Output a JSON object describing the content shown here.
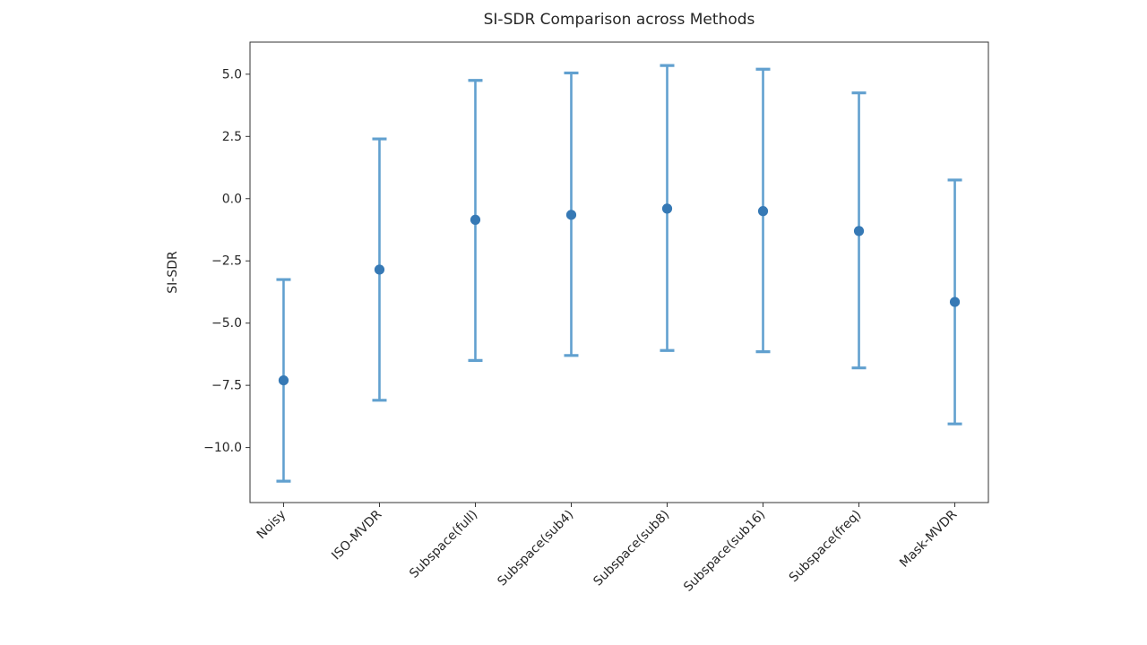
{
  "figure": {
    "title": "SI-SDR Comparison across Methods",
    "ylabel": "SI-SDR"
  },
  "chart_data": {
    "type": "scatter",
    "subtype": "errorbar-points",
    "title": "SI-SDR Comparison across Methods",
    "xlabel": "",
    "ylabel": "SI-SDR",
    "categories": [
      "Noisy",
      "ISO-MVDR",
      "Subspace(full)",
      "Subspace(sub4)",
      "Subspace(sub8)",
      "Subspace(sub16)",
      "Subspace(freq)",
      "Mask-MVDR"
    ],
    "series": [
      {
        "name": "SI-SDR",
        "means": [
          -7.3,
          -2.85,
          -0.85,
          -0.65,
          -0.4,
          -0.5,
          -1.3,
          -4.15
        ],
        "upper": [
          -3.25,
          2.4,
          4.75,
          5.05,
          5.35,
          5.2,
          4.25,
          0.75
        ],
        "lower": [
          -11.35,
          -8.1,
          -6.5,
          -6.3,
          -6.1,
          -6.15,
          -6.8,
          -9.05
        ]
      }
    ],
    "ylim": [
      -12.21,
      6.29
    ],
    "yticks": [
      5.0,
      2.5,
      0.0,
      -2.5,
      -5.0,
      -7.5,
      -10.0
    ],
    "ytick_labels": [
      "5.0",
      "2.5",
      "0.0",
      "−2.5",
      "−5.0",
      "−7.5",
      "−10.0"
    ],
    "grid": false,
    "legend": "none",
    "x_label_rotation_deg": 45,
    "colors": {
      "errorbar_line": "#61a0cf",
      "marker": "#3679b5",
      "spine": "#333333",
      "text": "#262626"
    }
  }
}
